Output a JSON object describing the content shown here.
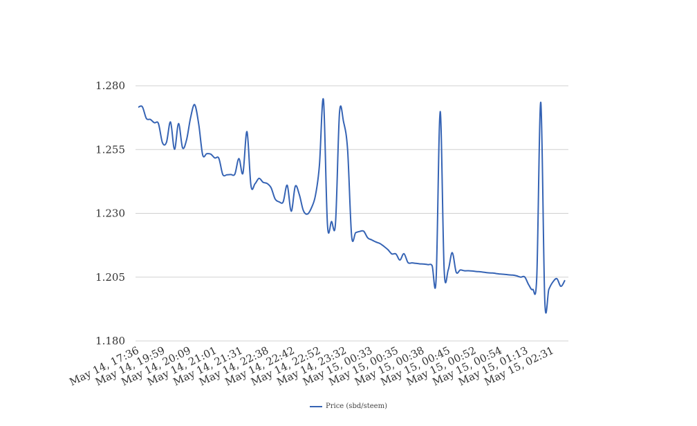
{
  "chart_data": {
    "type": "line",
    "title": "",
    "xlabel": "",
    "ylabel": "",
    "ylim": [
      1.18,
      1.28
    ],
    "yticks": [
      "1.180",
      "1.205",
      "1.230",
      "1.255",
      "1.280"
    ],
    "xtick_labels": [
      "May 14, 17:36",
      "May 14, 19:59",
      "May 14, 20:09",
      "May 14, 21:01",
      "May 14, 21:31",
      "May 14, 22:38",
      "May 14, 22:42",
      "May 14, 22:52",
      "May 14, 23:32",
      "May 15, 00:33",
      "May 15, 00:35",
      "May 15, 00:38",
      "May 15, 00:45",
      "May 15, 00:52",
      "May 15, 00:54",
      "May 15, 01:13",
      "May 15, 02:31"
    ],
    "grid": true,
    "legend_position": "bottom",
    "series": [
      {
        "name": "Price (sbd/steem)",
        "color": "#3563b4",
        "values": [
          1.2716,
          1.2718,
          1.2672,
          1.2668,
          1.2655,
          1.2652,
          1.2577,
          1.2578,
          1.2658,
          1.2551,
          1.2652,
          1.2557,
          1.2588,
          1.2676,
          1.2726,
          1.2651,
          1.2529,
          1.2534,
          1.2532,
          1.2517,
          1.2516,
          1.2452,
          1.2451,
          1.2452,
          1.2454,
          1.2515,
          1.2457,
          1.262,
          1.2408,
          1.2416,
          1.2437,
          1.2422,
          1.2417,
          1.24,
          1.2356,
          1.2345,
          1.2345,
          1.241,
          1.2308,
          1.2406,
          1.2374,
          1.2311,
          1.2297,
          1.2321,
          1.2369,
          1.2487,
          1.2745,
          1.2255,
          1.2268,
          1.2262,
          1.2695,
          1.2658,
          1.255,
          1.2212,
          1.2224,
          1.2229,
          1.223,
          1.2204,
          1.2196,
          1.2188,
          1.2182,
          1.2171,
          1.2158,
          1.2141,
          1.2141,
          1.2117,
          1.2142,
          1.2107,
          1.2106,
          1.2104,
          1.2102,
          1.2101,
          1.2099,
          1.2095,
          1.2042,
          1.2699,
          1.2076,
          1.2078,
          1.2146,
          1.2069,
          1.2078,
          1.2075,
          1.2075,
          1.2074,
          1.2072,
          1.2071,
          1.2069,
          1.2067,
          1.2066,
          1.2064,
          1.2062,
          1.2061,
          1.2059,
          1.2058,
          1.2055,
          1.205,
          1.2051,
          1.202,
          1.2002,
          1.2052,
          1.2735,
          1.1956,
          1.2002,
          1.2031,
          1.2044,
          1.2014,
          1.2038
        ]
      }
    ]
  }
}
